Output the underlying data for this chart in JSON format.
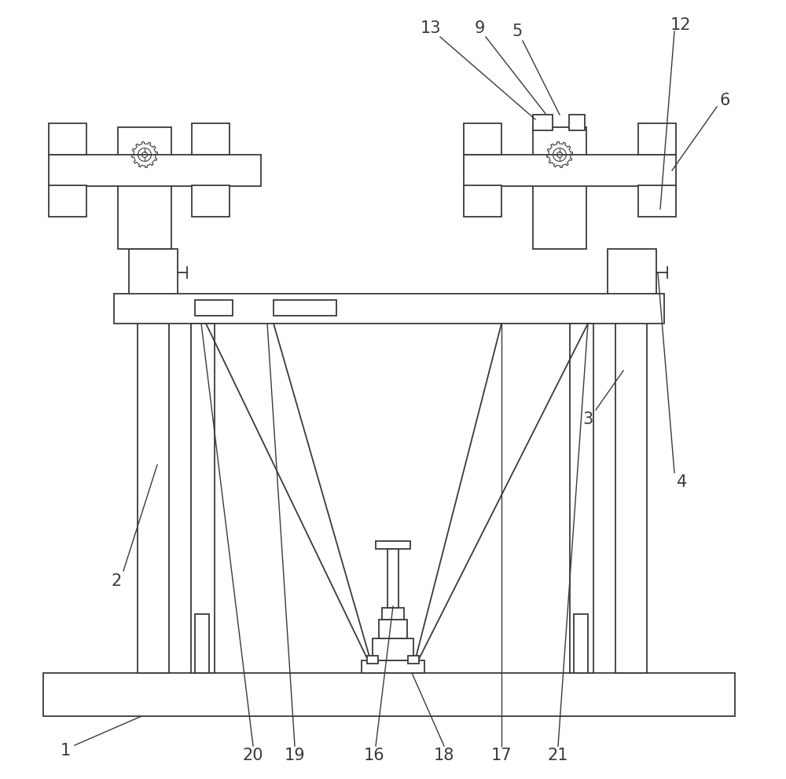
{
  "bg_color": "#ffffff",
  "line_color": "#3a3a3a",
  "lw": 1.3,
  "fig_width": 10.0,
  "fig_height": 9.92
}
